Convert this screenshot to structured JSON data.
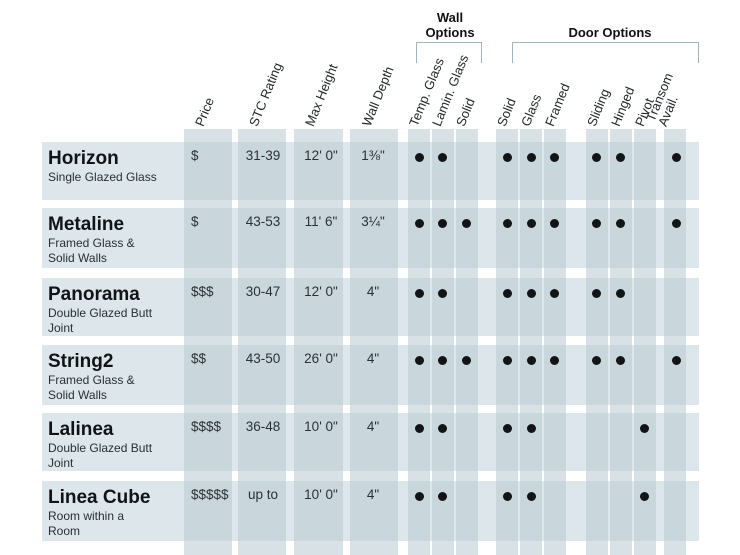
{
  "group_titles": {
    "wall_options": [
      "Wall",
      "Options"
    ],
    "door_options": "Door Options"
  },
  "columns": [
    {
      "key": "price",
      "label": "Price"
    },
    {
      "key": "stc",
      "label": "STC Rating"
    },
    {
      "key": "height",
      "label": "Max Height"
    },
    {
      "key": "depth",
      "label": "Wall Depth"
    },
    {
      "key": "wall_temp_glass",
      "label": "Temp. Glass"
    },
    {
      "key": "wall_lamin_glass",
      "label": "Lamin. Glass"
    },
    {
      "key": "wall_solid",
      "label": "Solid"
    },
    {
      "key": "door_solid",
      "label": "Solid"
    },
    {
      "key": "door_glass",
      "label": "Glass"
    },
    {
      "key": "door_framed",
      "label": "Framed"
    },
    {
      "key": "door_sliding",
      "label": "Sliding"
    },
    {
      "key": "door_hinged",
      "label": "Hinged"
    },
    {
      "key": "door_pivot",
      "label": "Pivot"
    },
    {
      "key": "door_transom",
      "label": [
        "Transom",
        "Avail."
      ]
    }
  ],
  "products": [
    {
      "name": "Horizon",
      "desc": [
        "Single Glazed Glass"
      ],
      "price": "$",
      "stc": "31-39",
      "height": "12' 0\"",
      "depth": "1⅜\"",
      "options": [
        true,
        true,
        false,
        true,
        true,
        true,
        true,
        true,
        false,
        true
      ]
    },
    {
      "name": "Metaline",
      "desc": [
        "Framed Glass &",
        "Solid Walls"
      ],
      "price": "$",
      "stc": "43-53",
      "height": "11' 6\"",
      "depth": "3¼\"",
      "options": [
        true,
        true,
        true,
        true,
        true,
        true,
        true,
        true,
        false,
        true
      ]
    },
    {
      "name": "Panorama",
      "desc": [
        "Double Glazed Butt",
        "Joint"
      ],
      "price": "$$$",
      "stc": "30-47",
      "height": "12' 0\"",
      "depth": "4\"",
      "options": [
        true,
        true,
        false,
        true,
        true,
        true,
        true,
        true,
        false,
        false
      ]
    },
    {
      "name": "String2",
      "desc": [
        "Framed Glass &",
        "Solid Walls"
      ],
      "price": "$$",
      "stc": "43-50",
      "height": "26' 0\"",
      "depth": "4\"",
      "options": [
        true,
        true,
        true,
        true,
        true,
        true,
        true,
        true,
        false,
        true
      ]
    },
    {
      "name": "Lalinea",
      "desc": [
        "Double Glazed Butt",
        "Joint"
      ],
      "price": "$$$$",
      "stc": "36-48",
      "height": "10' 0\"",
      "depth": "4\"",
      "options": [
        true,
        true,
        false,
        true,
        true,
        false,
        false,
        false,
        true,
        false
      ]
    },
    {
      "name": "Linea Cube",
      "desc": [
        "Room within a",
        "Room"
      ],
      "price": "$$$$$",
      "stc": "up to",
      "height": "10' 0\"",
      "depth": "4\"",
      "options": [
        true,
        true,
        false,
        true,
        true,
        false,
        false,
        false,
        true,
        false
      ]
    }
  ],
  "colors": {
    "row_band": "#dde6ea",
    "column_band": "#b8cbd2",
    "dot": "#121416",
    "bracket": "#9fb5bd"
  }
}
